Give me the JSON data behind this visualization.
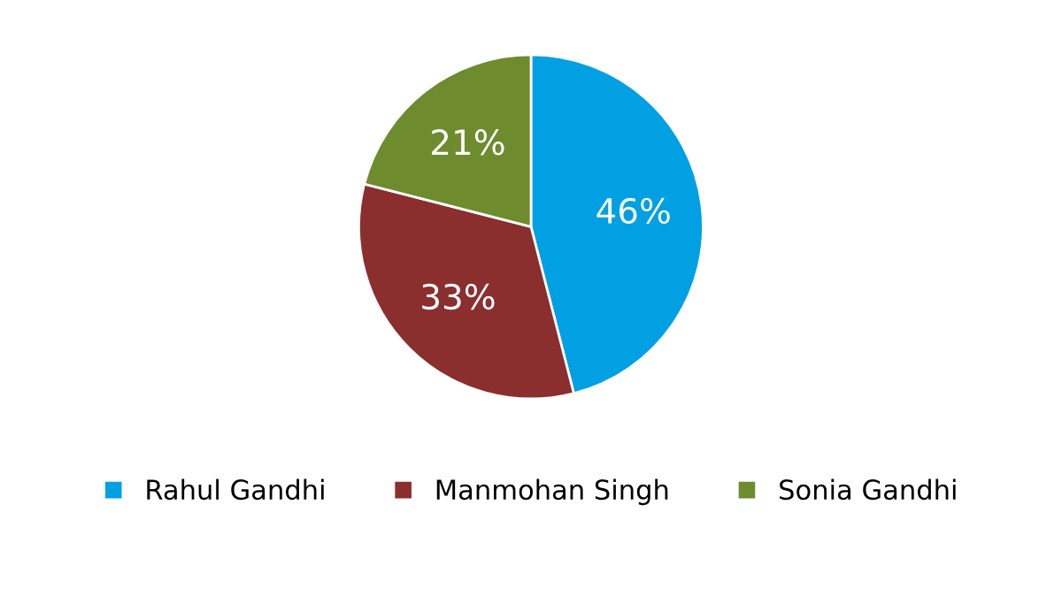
{
  "chart_data": {
    "type": "pie",
    "categories": [
      "Rahul Gandhi",
      "Manmohan Singh",
      "Sonia Gandhi"
    ],
    "values": [
      46,
      33,
      21
    ],
    "value_labels": [
      "46%",
      "33%",
      "21%"
    ],
    "colors": [
      "#00a0e3",
      "#8b2e2e",
      "#6e8b2e"
    ],
    "legend": "bottom"
  }
}
